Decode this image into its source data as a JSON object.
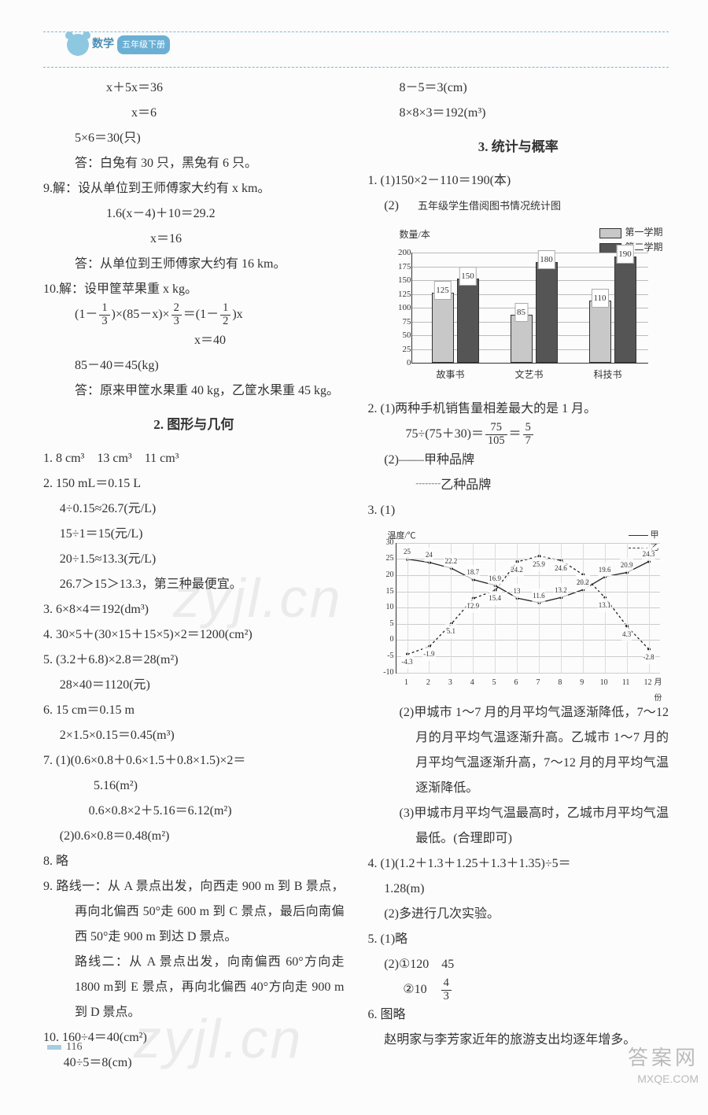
{
  "header": {
    "subject": "数学",
    "grade": "五年级下册"
  },
  "page_number": "116",
  "watermark": "zyjl.cn",
  "corner": {
    "line1": "答案网",
    "line2": "MXQE.COM"
  },
  "left": {
    "l1": "x＋5x＝36",
    "l2": "x＝6",
    "l3": "5×6＝30(只)",
    "l4": "答：白兔有 30 只，黑兔有 6 只。",
    "q9a": "9.解：设从单位到王师傅家大约有 x km。",
    "q9b": "1.6(x－4)＋10＝29.2",
    "q9c": "x＝16",
    "q9d": "答：从单位到王师傅家大约有 16 km。",
    "q10a": "10.解：设甲筐苹果重 x kg。",
    "q10c": "x＝40",
    "q10d": "85－40＝45(kg)",
    "q10e": "答：原来甲筐水果重 40 kg，乙筐水果重 45 kg。",
    "sec2": "2. 图形与几何",
    "g1": "1. 8 cm³　13 cm³　11 cm³",
    "g2a": "2. 150 mL＝0.15 L",
    "g2b": "4÷0.15≈26.7(元/L)",
    "g2c": "15÷1＝15(元/L)",
    "g2d": "20÷1.5≈13.3(元/L)",
    "g2e": "26.7＞15＞13.3，第三种最便宜。",
    "g3": "3. 6×8×4＝192(dm³)",
    "g4": "4. 30×5＋(30×15＋15×5)×2＝1200(cm²)",
    "g5a": "5. (3.2＋6.8)×2.8＝28(m²)",
    "g5b": "28×40＝1120(元)",
    "g6a": "6. 15 cm＝0.15 m",
    "g6b": "2×1.5×0.15＝0.45(m³)",
    "g7a": "7. (1)(0.6×0.8＋0.6×1.5＋0.8×1.5)×2＝",
    "g7b": "5.16(m²)",
    "g7c": "0.6×0.8×2＋5.16＝6.12(m²)",
    "g7d": "(2)0.6×0.8＝0.48(m²)",
    "g8": "8. 略",
    "g9a": "9. 路线一：从 A 景点出发，向西走 900 m 到 B 景点，再向北偏西 50°走 600 m 到 C 景点，最后向南偏西 50°走 900 m 到达 D 景点。",
    "g9b": "路线二：从 A 景点出发，向南偏西 60°方向走 1800 m到 E 景点，再向北偏西 40°方向走 900 m 到 D 景点。",
    "g10a": "10. 160÷4＝40(cm²)",
    "g10b": "40÷5＝8(cm)"
  },
  "right": {
    "r1": "8－5＝3(cm)",
    "r2": "8×8×3＝192(m³)",
    "sec3": "3. 统计与概率",
    "s1": "1. (1)150×2－110＝190(本)",
    "s1b": "(2)",
    "chart1": {
      "title": "五年级学生借阅图书情况统计图",
      "ylabel": "数量/本",
      "legend": [
        "第一学期",
        "第二学期"
      ],
      "series_colors": [
        "#c8c8c8",
        "#555555"
      ],
      "ymax": 200,
      "ystep": 25,
      "categories": [
        "故事书",
        "文艺书",
        "科技书"
      ],
      "s1": [
        125,
        85,
        110
      ],
      "s2": [
        150,
        180,
        190
      ]
    },
    "s2a": "2. (1)两种手机销售量相差最大的是 1 月。",
    "s2c": "(2)——甲种品牌",
    "s2d": "┈┈乙种品牌",
    "s3a": "3. (1)",
    "chart2": {
      "ylabel": "温度/℃",
      "xlabel_suffix": "月份",
      "ymin": -10,
      "ymax": 30,
      "ystep": 5,
      "x": [
        1,
        2,
        3,
        4,
        5,
        6,
        7,
        8,
        9,
        10,
        11,
        12
      ],
      "jia": [
        25,
        24,
        22.2,
        18.7,
        16.9,
        13,
        11.6,
        13.2,
        15.6,
        19.6,
        20.9,
        24.3
      ],
      "yi": [
        -4.3,
        -1.9,
        5.1,
        12.9,
        15.4,
        24.2,
        25.9,
        24.6,
        20.2,
        13.1,
        4.3,
        -2.8
      ],
      "legend": [
        "甲",
        "乙"
      ]
    },
    "s3b": "(2)甲城市 1～7 月的月平均气温逐渐降低，7～12 月的月平均气温逐渐升高。乙城市 1～7 月的月平均气温逐渐升高，7～12 月的月平均气温逐渐降低。",
    "s3c": "(3)甲城市月平均气温最高时，乙城市月平均气温最低。(合理即可)",
    "s4a": "4. (1)(1.2＋1.3＋1.25＋1.3＋1.35)÷5＝",
    "s4b": "1.28(m)",
    "s4c": "(2)多进行几次实验。",
    "s5a": "5. (1)略",
    "s5b": "(2)①120　45",
    "s5c_pre": "②10　",
    "s6a": "6. 图略",
    "s6b": "赵明家与李芳家近年的旅游支出均逐年增多。"
  }
}
